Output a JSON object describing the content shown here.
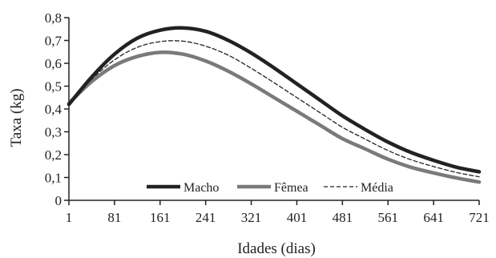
{
  "chart_data": {
    "type": "line",
    "title": "",
    "xlabel": "Idades (dias)",
    "ylabel": "Taxa (kg)",
    "xlim": [
      1,
      721
    ],
    "ylim": [
      0,
      0.8
    ],
    "x_ticks": [
      1,
      81,
      161,
      241,
      321,
      401,
      481,
      561,
      641,
      721
    ],
    "y_ticks": [
      0,
      0.1,
      0.2,
      0.3,
      0.4,
      0.5,
      0.6,
      0.7,
      0.8
    ],
    "x_tick_labels": [
      "1",
      "81",
      "161",
      "241",
      "321",
      "401",
      "481",
      "561",
      "641",
      "721"
    ],
    "y_tick_labels": [
      "0",
      "0,1",
      "0,2",
      "0,3",
      "0,4",
      "0,5",
      "0,6",
      "0,7",
      "0,8"
    ],
    "grid": false,
    "legend_position": "bottom-center",
    "x": [
      1,
      41,
      81,
      121,
      161,
      201,
      241,
      281,
      321,
      361,
      401,
      441,
      481,
      521,
      561,
      601,
      641,
      681,
      721
    ],
    "series": [
      {
        "name": "Macho",
        "color": "#222222",
        "style": "solid-thick",
        "values": [
          0.42,
          0.54,
          0.64,
          0.71,
          0.745,
          0.755,
          0.74,
          0.7,
          0.645,
          0.58,
          0.51,
          0.44,
          0.37,
          0.31,
          0.255,
          0.21,
          0.175,
          0.145,
          0.125
        ]
      },
      {
        "name": "Fêmea",
        "color": "#7a7a7a",
        "style": "solid-thick",
        "values": [
          0.425,
          0.52,
          0.59,
          0.63,
          0.648,
          0.64,
          0.61,
          0.565,
          0.51,
          0.45,
          0.39,
          0.33,
          0.27,
          0.225,
          0.18,
          0.145,
          0.12,
          0.098,
          0.08
        ]
      },
      {
        "name": "Média",
        "color": "#222222",
        "style": "dashed",
        "values": [
          0.422,
          0.53,
          0.615,
          0.67,
          0.695,
          0.697,
          0.675,
          0.635,
          0.578,
          0.515,
          0.45,
          0.385,
          0.32,
          0.268,
          0.218,
          0.178,
          0.148,
          0.122,
          0.103
        ]
      }
    ]
  }
}
